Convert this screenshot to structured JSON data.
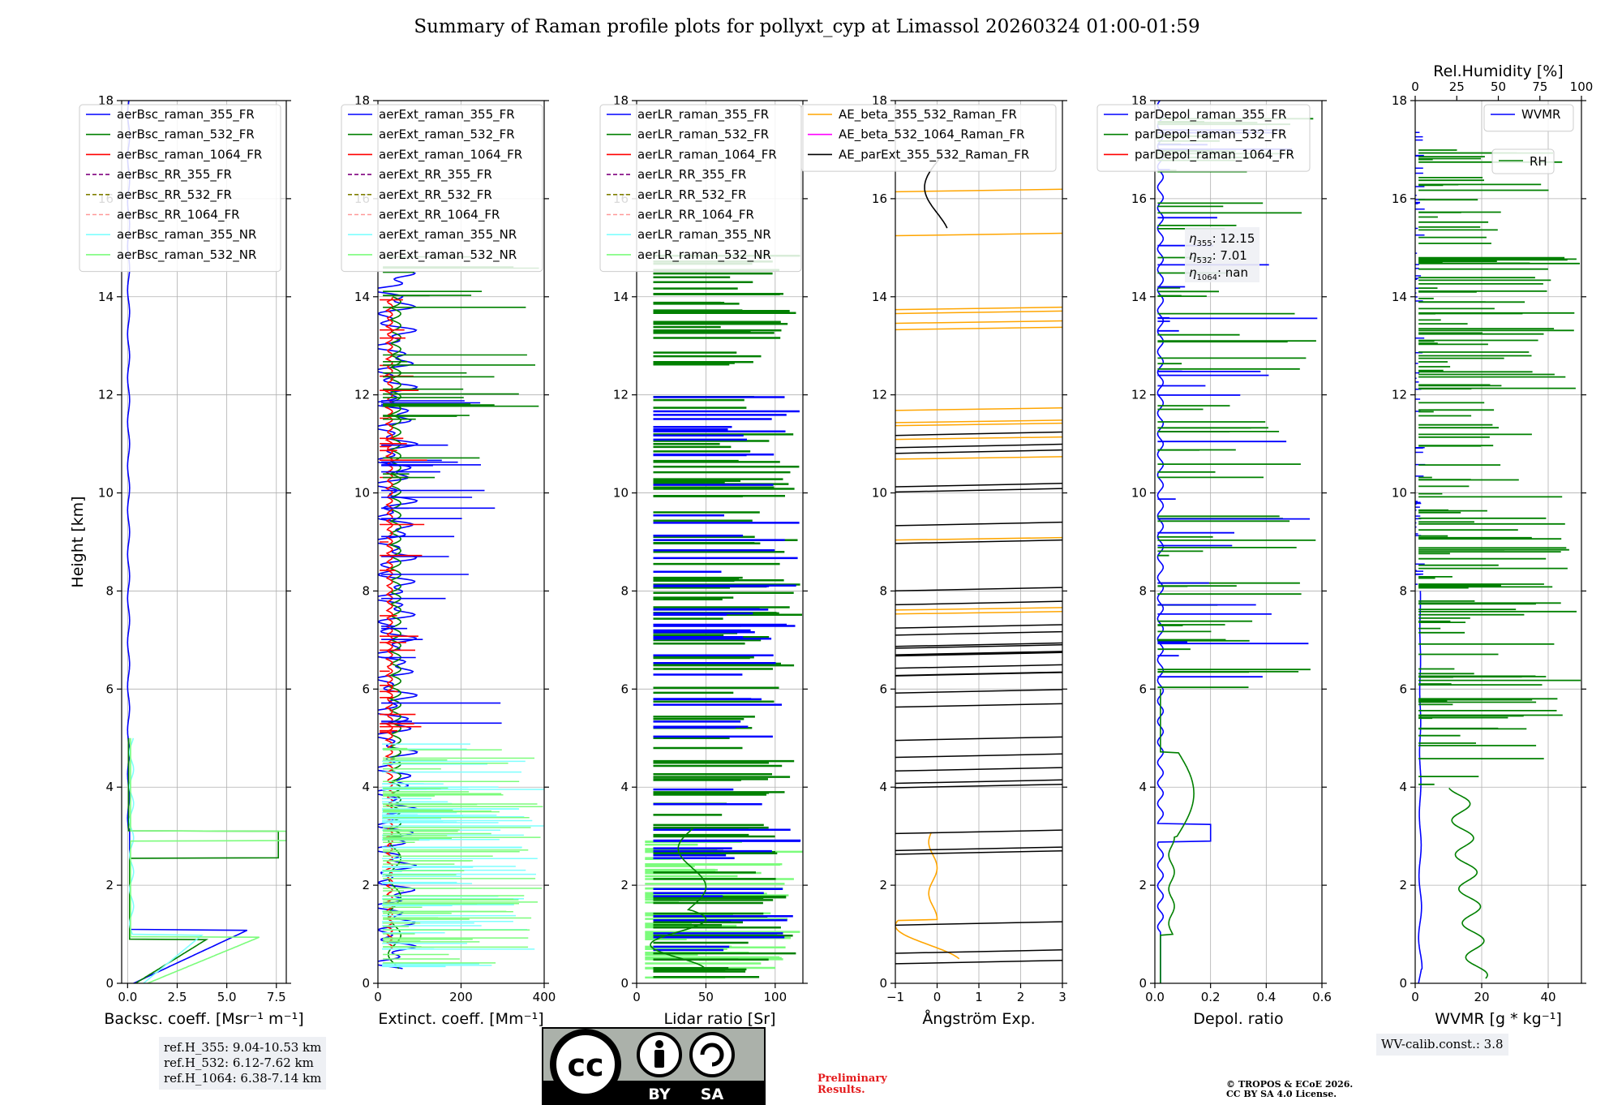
{
  "title": "Summary of Raman profile plots for pollyxt_cyp at Limassol 20260324 01:00-01:59",
  "colors": {
    "blue": "#0000ff",
    "green": "#008000",
    "red": "#ff0000",
    "purple": "#800080",
    "olive": "#808000",
    "salmon": "#ff9999",
    "cyan": "#7fffff",
    "lightgreen": "#7cfc7c",
    "orange": "#ffa500",
    "magenta": "#ff00ff",
    "black": "#000000"
  },
  "chart_data": [
    {
      "type": "line",
      "id": "bsc",
      "xlabel": "Backsc. coeff. [Msr⁻¹ m⁻¹]",
      "ylabel": "Height [km]",
      "xlim": [
        -0.3,
        8
      ],
      "ylim": [
        0,
        18
      ],
      "xticks": [
        0,
        2.5,
        5,
        7.5
      ],
      "xticklabels": [
        "0.0",
        "2.5",
        "5.0",
        "7.5"
      ],
      "yticks": [
        0,
        2,
        4,
        6,
        8,
        10,
        12,
        14,
        16,
        18
      ],
      "legend": [
        "aerBsc_raman_355_FR",
        "aerBsc_raman_532_FR",
        "aerBsc_raman_1064_FR",
        "aerBsc_RR_355_FR",
        "aerBsc_RR_532_FR",
        "aerBsc_RR_1064_FR",
        "aerBsc_raman_355_NR",
        "aerBsc_raman_532_NR"
      ],
      "legend_colors": [
        "blue",
        "green",
        "red",
        "purple",
        "olive",
        "salmon",
        "cyan",
        "lightgreen"
      ],
      "legend_dashed": [
        false,
        false,
        false,
        true,
        true,
        true,
        false,
        false
      ]
    },
    {
      "type": "line",
      "id": "ext",
      "xlabel": "Extinct. coeff. [Mm⁻¹]",
      "xlim": [
        0,
        400
      ],
      "ylim": [
        0,
        18
      ],
      "xticks": [
        0,
        200,
        400
      ],
      "xticklabels": [
        "0",
        "200",
        "400"
      ],
      "yticks": [
        0,
        2,
        4,
        6,
        8,
        10,
        12,
        14,
        16,
        18
      ],
      "legend": [
        "aerExt_raman_355_FR",
        "aerExt_raman_532_FR",
        "aerExt_raman_1064_FR",
        "aerExt_RR_355_FR",
        "aerExt_RR_532_FR",
        "aerExt_RR_1064_FR",
        "aerExt_raman_355_NR",
        "aerExt_raman_532_NR"
      ],
      "legend_colors": [
        "blue",
        "green",
        "red",
        "purple",
        "olive",
        "salmon",
        "cyan",
        "lightgreen"
      ],
      "legend_dashed": [
        false,
        false,
        false,
        true,
        true,
        true,
        false,
        false
      ]
    },
    {
      "type": "line",
      "id": "lr",
      "xlabel": "Lidar ratio [Sr]",
      "xlim": [
        0,
        120
      ],
      "ylim": [
        0,
        18
      ],
      "xticks": [
        0,
        50,
        100
      ],
      "xticklabels": [
        "0",
        "50",
        "100"
      ],
      "yticks": [
        0,
        2,
        4,
        6,
        8,
        10,
        12,
        14,
        16,
        18
      ],
      "legend": [
        "aerLR_raman_355_FR",
        "aerLR_raman_532_FR",
        "aerLR_raman_1064_FR",
        "aerLR_RR_355_FR",
        "aerLR_RR_532_FR",
        "aerLR_RR_1064_FR",
        "aerLR_raman_355_NR",
        "aerLR_raman_532_NR"
      ],
      "legend_colors": [
        "blue",
        "green",
        "red",
        "purple",
        "olive",
        "salmon",
        "cyan",
        "lightgreen"
      ],
      "legend_dashed": [
        false,
        false,
        false,
        true,
        true,
        true,
        false,
        false
      ]
    },
    {
      "type": "line",
      "id": "ae",
      "xlabel": "Ångström Exp.",
      "xlim": [
        -1,
        3
      ],
      "ylim": [
        0,
        18
      ],
      "xticks": [
        -1,
        0,
        1,
        2,
        3
      ],
      "xticklabels": [
        "−1",
        "0",
        "1",
        "2",
        "3"
      ],
      "yticks": [
        0,
        2,
        4,
        6,
        8,
        10,
        12,
        14,
        16,
        18
      ],
      "legend": [
        "AE_beta_355_532_Raman_FR",
        "AE_beta_532_1064_Raman_FR",
        "AE_parExt_355_532_Raman_FR"
      ],
      "legend_colors": [
        "orange",
        "magenta",
        "black"
      ],
      "legend_dashed": [
        false,
        false,
        false
      ]
    },
    {
      "type": "line",
      "id": "dep",
      "xlabel": "Depol. ratio",
      "xlim": [
        0,
        0.6
      ],
      "ylim": [
        0,
        18
      ],
      "xticks": [
        0,
        0.2,
        0.4,
        0.6
      ],
      "xticklabels": [
        "0.0",
        "0.2",
        "0.4",
        "0.6"
      ],
      "yticks": [
        0,
        2,
        4,
        6,
        8,
        10,
        12,
        14,
        16,
        18
      ],
      "legend": [
        "parDepol_raman_355_FR",
        "parDepol_raman_532_FR",
        "parDepol_raman_1064_FR"
      ],
      "legend_colors": [
        "blue",
        "green",
        "red"
      ],
      "legend_dashed": [
        false,
        false,
        false
      ],
      "annotations": [
        {
          "sym": "η",
          "sub": "355",
          "val": ": 12.15"
        },
        {
          "sym": "η",
          "sub": "532",
          "val": ": 7.01"
        },
        {
          "sym": "η",
          "sub": "1064",
          "val": ": nan"
        }
      ]
    },
    {
      "type": "line",
      "id": "wv",
      "xlabel": "WVMR [g * kg⁻¹]",
      "xlim": [
        0,
        50
      ],
      "ylim": [
        0,
        18
      ],
      "xticks": [
        0,
        20,
        40
      ],
      "xticklabels": [
        "0",
        "20",
        "40"
      ],
      "yticks": [
        0,
        2,
        4,
        6,
        8,
        10,
        12,
        14,
        16,
        18
      ],
      "top_xlabel": "Rel.Humidity [%]",
      "top_xticks": [
        0,
        25,
        50,
        75,
        100
      ],
      "top_xlim": [
        0,
        100
      ],
      "legend": [
        "WVMR"
      ],
      "legend_colors": [
        "blue"
      ],
      "legend2": [
        "RH"
      ],
      "legend2_colors": [
        "green"
      ]
    }
  ],
  "info": {
    "refh": [
      "ref.H_355: 9.04-10.53 km",
      "ref.H_532: 6.12-7.62 km",
      "ref.H_1064: 6.38-7.14 km"
    ],
    "wvcalib": "WV-calib.const.: 3.8",
    "prelim": [
      "Preliminary",
      "Results."
    ],
    "copyright": [
      "© TROPOS & ECoE 2026.",
      "CC BY SA 4.0 License."
    ],
    "cc": {
      "by": "BY",
      "sa": "SA"
    }
  }
}
